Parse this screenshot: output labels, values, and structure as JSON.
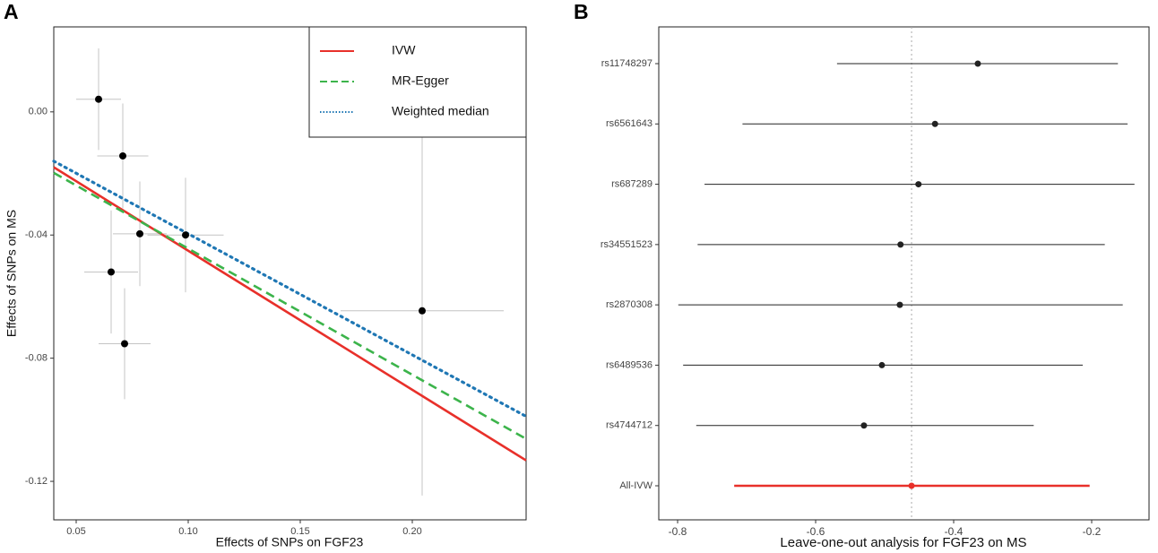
{
  "chart_data": [
    {
      "type": "scatter",
      "panel": "A",
      "xlabel": "Effects of SNPs on  FGF23",
      "ylabel": "Effects of SNPs on  MS",
      "xlim": [
        0.04,
        0.2508
      ],
      "ylim": [
        -0.1325,
        0.0276
      ],
      "xticks": [
        0.05,
        {
          "value": 0.1,
          "label": "0.10"
        },
        0.15,
        {
          "value": 0.2,
          "label": "0.20"
        }
      ],
      "yticks": [
        {
          "value": 0,
          "label": "0.00"
        },
        -0.04,
        -0.08,
        -0.12
      ],
      "x": [
        0.06,
        0.0708,
        0.0784,
        0.0988,
        0.0656,
        0.0716,
        0.2044
      ],
      "values": [
        0.0041,
        -0.0143,
        -0.0396,
        -0.04,
        -0.052,
        -0.0753,
        -0.0646
      ],
      "xerr": [
        0.01,
        0.0114,
        0.012,
        0.017,
        0.012,
        0.0116,
        0.0364
      ],
      "yerr": [
        0.0165,
        0.017,
        0.017,
        0.0186,
        0.02,
        0.018,
        0.06
      ],
      "point_color": "#000000",
      "errorbar_color": "#c4c4c4",
      "legend": "top-right",
      "lines": [
        {
          "name": "IVW",
          "color": "#e8302a",
          "dash": "solid",
          "x": [
            0.04,
            0.2508
          ],
          "values": [
            -0.018,
            -0.1132
          ]
        },
        {
          "name": "MR-Egger",
          "color": "#3cb44b",
          "dash": "dashed",
          "x": [
            0.04,
            0.2508
          ],
          "values": [
            -0.0198,
            -0.1062
          ]
        },
        {
          "name": "Weighted median",
          "color": "#1f77b4",
          "dash": "dotted",
          "x": [
            0.04,
            0.2508
          ],
          "values": [
            -0.016,
            -0.0989
          ]
        }
      ]
    },
    {
      "type": "forest",
      "panel": "B",
      "xlabel": "Leave-one-out analysis for FGF23 on MS",
      "xlim": [
        -0.8273,
        -0.1169
      ],
      "xticks": [
        -0.8,
        -0.6,
        -0.4,
        -0.2
      ],
      "categories": [
        "rs11748297",
        "rs6561643",
        "rs687289",
        "rs34551523",
        "rs2870308",
        "rs6489536",
        "rs4744712",
        "All-IVW"
      ],
      "values": [
        -0.365,
        -0.427,
        -0.451,
        -0.477,
        -0.478,
        -0.504,
        -0.53,
        -0.461
      ],
      "lower": [
        -0.569,
        -0.706,
        -0.761,
        -0.771,
        -0.799,
        -0.792,
        -0.773,
        -0.718
      ],
      "upper": [
        -0.162,
        -0.148,
        -0.138,
        -0.181,
        -0.155,
        -0.213,
        -0.284,
        -0.203
      ],
      "colors": [
        "#222222",
        "#222222",
        "#222222",
        "#222222",
        "#222222",
        "#222222",
        "#222222",
        "#e8302a"
      ],
      "ref": -0.461
    }
  ]
}
